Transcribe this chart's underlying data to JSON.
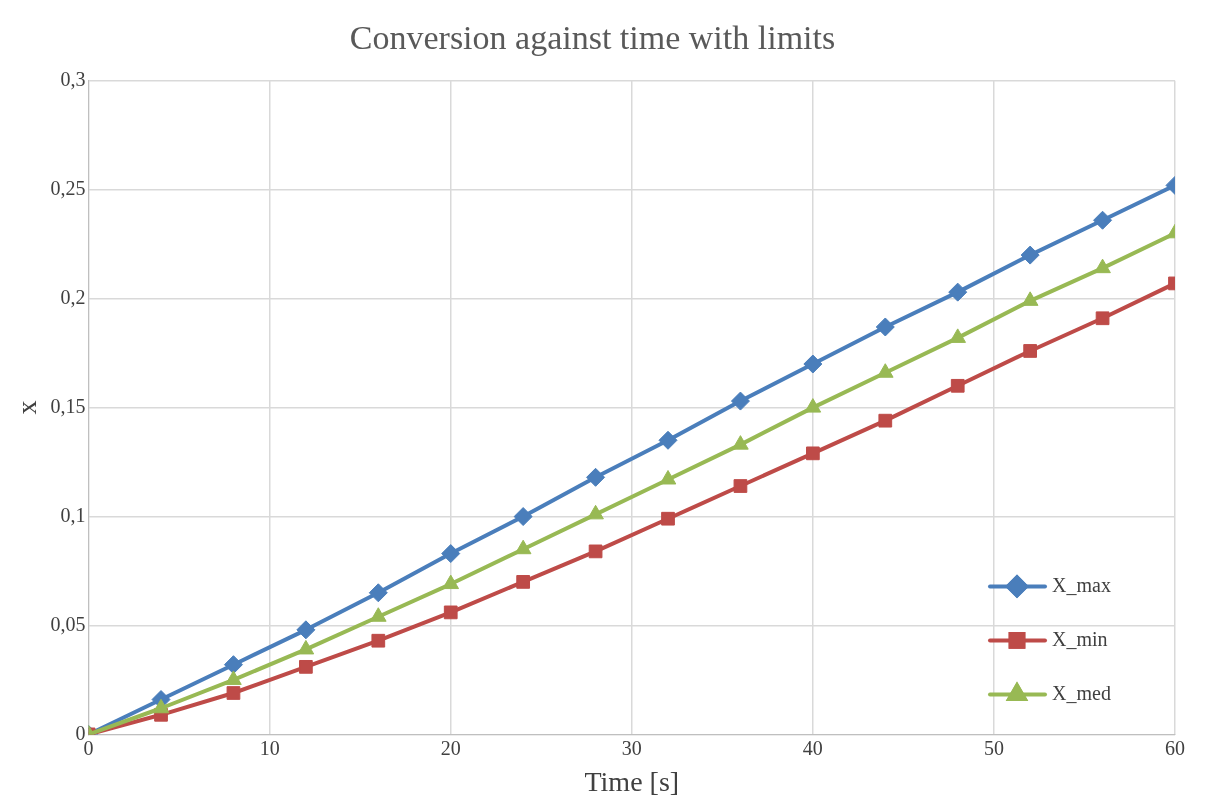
{
  "chart_data": {
    "type": "line",
    "title": "Conversion against time with limits",
    "xlabel": "Time [s]",
    "ylabel": "x",
    "x": [
      0,
      4,
      8,
      12,
      16,
      20,
      24,
      28,
      32,
      36,
      40,
      44,
      48,
      52,
      56,
      60
    ],
    "series": [
      {
        "name": "X_max",
        "color": "#4a7ebb",
        "marker": "diamond",
        "values": [
          0,
          0.016,
          0.032,
          0.048,
          0.065,
          0.083,
          0.1,
          0.118,
          0.135,
          0.153,
          0.17,
          0.187,
          0.203,
          0.22,
          0.236,
          0.252
        ]
      },
      {
        "name": "X_min",
        "color": "#be4b48",
        "marker": "square",
        "values": [
          0,
          0.009,
          0.019,
          0.031,
          0.043,
          0.056,
          0.07,
          0.084,
          0.099,
          0.114,
          0.129,
          0.144,
          0.16,
          0.176,
          0.191,
          0.207
        ]
      },
      {
        "name": "X_med",
        "color": "#98b954",
        "marker": "triangle",
        "values": [
          0,
          0.012,
          0.025,
          0.039,
          0.054,
          0.069,
          0.085,
          0.101,
          0.117,
          0.133,
          0.15,
          0.166,
          0.182,
          0.199,
          0.214,
          0.23
        ]
      }
    ],
    "xlim": [
      0,
      60
    ],
    "xticks": [
      0,
      10,
      20,
      30,
      40,
      50,
      60
    ],
    "ylim": [
      0,
      0.3
    ],
    "yticks": [
      0,
      {
        "value": 0.05,
        "label": "0,05"
      },
      {
        "value": 0.1,
        "label": "0,1"
      },
      {
        "value": 0.15,
        "label": "0,15"
      },
      {
        "value": 0.2,
        "label": "0,2"
      },
      {
        "value": 0.25,
        "label": "0,25"
      },
      {
        "value": 0.3,
        "label": "0,3"
      }
    ],
    "grid": true,
    "legend": "bottom right",
    "line_style": "solid"
  }
}
